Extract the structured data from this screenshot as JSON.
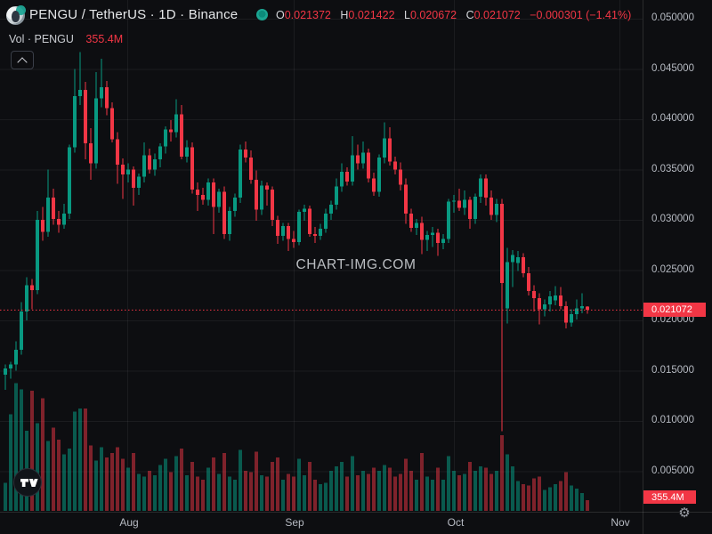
{
  "header": {
    "symbol_title": "PENGU / TetherUS · 1D · Binance",
    "ohlc": {
      "o_label": "O",
      "o_value": "0.021372",
      "h_label": "H",
      "h_value": "0.021422",
      "l_label": "L",
      "l_value": "0.020672",
      "c_label": "C",
      "c_value": "0.021072",
      "change": "−0.000301 (−1.41%)"
    }
  },
  "volume_row": {
    "label": "Vol · PENGU",
    "value": "355.4M"
  },
  "watermark": "CHART-IMG.COM",
  "price_axis": {
    "tick_labels": [
      "0.050000",
      "0.045000",
      "0.040000",
      "0.035000",
      "0.030000",
      "0.025000",
      "0.020000",
      "0.015000",
      "0.010000",
      "0.005000"
    ],
    "last_price_badge": "0.021072",
    "last_volume_badge": "355.4M"
  },
  "time_axis": {
    "labels": [
      "Aug",
      "Sep",
      "Oct",
      "Nov"
    ]
  },
  "colors": {
    "up": "#089981",
    "down": "#f23645",
    "volume_up": "rgba(8,153,129,0.55)",
    "volume_down": "rgba(242,54,69,0.5)",
    "badge": "#f23645",
    "background": "#0d0e11",
    "grid": "rgba(250,250,255,0.06)",
    "axis_text": "#b6bac2"
  },
  "chart_data": {
    "type": "candlestick",
    "title": "PENGU / TetherUS · 1D · Binance",
    "symbol": "PENGU/TetherUS",
    "interval": "1D",
    "exchange": "Binance",
    "x_ticks": [
      "Aug",
      "Sep",
      "Oct",
      "Nov"
    ],
    "y_tick_values": [
      0.05,
      0.045,
      0.04,
      0.035,
      0.03,
      0.025,
      0.02,
      0.015,
      0.01,
      0.005
    ],
    "y_range": [
      0.0045,
      0.0518
    ],
    "grid": true,
    "legend_position": "none",
    "last_price": 0.021072,
    "last_ohlc": {
      "open": 0.021372,
      "high": 0.021422,
      "low": 0.020672,
      "close": 0.021072,
      "change": -0.000301,
      "change_pct": -1.41
    },
    "last_volume_millions": 355.4,
    "candles_ohlc": [
      [
        0.0146,
        0.0156,
        0.0131,
        0.0152
      ],
      [
        0.0152,
        0.0159,
        0.0142,
        0.0156
      ],
      [
        0.0156,
        0.0179,
        0.015,
        0.0171
      ],
      [
        0.0171,
        0.0218,
        0.0166,
        0.0209
      ],
      [
        0.0209,
        0.0243,
        0.02,
        0.0235
      ],
      [
        0.0235,
        0.0241,
        0.0211,
        0.023
      ],
      [
        0.023,
        0.0309,
        0.0226,
        0.03
      ],
      [
        0.03,
        0.0313,
        0.0279,
        0.0288
      ],
      [
        0.0288,
        0.035,
        0.0283,
        0.0322
      ],
      [
        0.0322,
        0.0331,
        0.0295,
        0.0301
      ],
      [
        0.0301,
        0.0309,
        0.0287,
        0.0295
      ],
      [
        0.0295,
        0.0316,
        0.0291,
        0.0306
      ],
      [
        0.0306,
        0.0375,
        0.0301,
        0.0372
      ],
      [
        0.0372,
        0.045,
        0.0367,
        0.0423
      ],
      [
        0.0423,
        0.0467,
        0.0414,
        0.0429
      ],
      [
        0.0429,
        0.0437,
        0.036,
        0.0376
      ],
      [
        0.0376,
        0.0391,
        0.034,
        0.0356
      ],
      [
        0.0356,
        0.0447,
        0.0351,
        0.0421
      ],
      [
        0.0421,
        0.046,
        0.0412,
        0.0432
      ],
      [
        0.0432,
        0.0438,
        0.0404,
        0.0411
      ],
      [
        0.0411,
        0.0417,
        0.0377,
        0.038
      ],
      [
        0.038,
        0.0387,
        0.0336,
        0.0355
      ],
      [
        0.0355,
        0.0361,
        0.0321,
        0.0345
      ],
      [
        0.0345,
        0.0356,
        0.0337,
        0.035
      ],
      [
        0.035,
        0.0353,
        0.0314,
        0.0332
      ],
      [
        0.0332,
        0.0346,
        0.0325,
        0.0343
      ],
      [
        0.0343,
        0.0377,
        0.0337,
        0.0364
      ],
      [
        0.0364,
        0.0371,
        0.0346,
        0.035
      ],
      [
        0.035,
        0.0366,
        0.0344,
        0.036
      ],
      [
        0.036,
        0.0376,
        0.0352,
        0.0373
      ],
      [
        0.0373,
        0.0393,
        0.0366,
        0.039
      ],
      [
        0.039,
        0.0399,
        0.0378,
        0.0387
      ],
      [
        0.0387,
        0.042,
        0.0382,
        0.0405
      ],
      [
        0.0405,
        0.0414,
        0.036,
        0.0363
      ],
      [
        0.0363,
        0.0379,
        0.0357,
        0.0372
      ],
      [
        0.0372,
        0.0377,
        0.0326,
        0.033
      ],
      [
        0.033,
        0.0337,
        0.0309,
        0.0325
      ],
      [
        0.0325,
        0.0332,
        0.0315,
        0.032
      ],
      [
        0.032,
        0.0341,
        0.0314,
        0.0337
      ],
      [
        0.0337,
        0.0341,
        0.0286,
        0.0313
      ],
      [
        0.0313,
        0.0331,
        0.0307,
        0.0328
      ],
      [
        0.0328,
        0.0333,
        0.0281,
        0.0286
      ],
      [
        0.0286,
        0.0313,
        0.0279,
        0.0309
      ],
      [
        0.0309,
        0.0326,
        0.0303,
        0.0322
      ],
      [
        0.0322,
        0.0375,
        0.0317,
        0.037
      ],
      [
        0.037,
        0.0378,
        0.0357,
        0.0362
      ],
      [
        0.0362,
        0.0369,
        0.0336,
        0.034
      ],
      [
        0.034,
        0.0349,
        0.0299,
        0.031
      ],
      [
        0.031,
        0.0339,
        0.0305,
        0.0334
      ],
      [
        0.0334,
        0.0337,
        0.0314,
        0.033
      ],
      [
        0.033,
        0.0333,
        0.0294,
        0.03
      ],
      [
        0.03,
        0.0304,
        0.0276,
        0.0284
      ],
      [
        0.0284,
        0.0297,
        0.0279,
        0.0294
      ],
      [
        0.0294,
        0.0297,
        0.0269,
        0.0281
      ],
      [
        0.0281,
        0.0289,
        0.0272,
        0.0278
      ],
      [
        0.0278,
        0.031,
        0.0275,
        0.0308
      ],
      [
        0.0308,
        0.0315,
        0.0299,
        0.0311
      ],
      [
        0.0311,
        0.0314,
        0.0283,
        0.0286
      ],
      [
        0.0286,
        0.0293,
        0.0277,
        0.0284
      ],
      [
        0.0284,
        0.0296,
        0.028,
        0.0291
      ],
      [
        0.0291,
        0.0311,
        0.0287,
        0.0306
      ],
      [
        0.0306,
        0.0319,
        0.03,
        0.0315
      ],
      [
        0.0315,
        0.0341,
        0.031,
        0.0333
      ],
      [
        0.0333,
        0.0356,
        0.0328,
        0.0348
      ],
      [
        0.0348,
        0.0352,
        0.0334,
        0.0338
      ],
      [
        0.0338,
        0.0383,
        0.0334,
        0.0364
      ],
      [
        0.0364,
        0.0375,
        0.035,
        0.0356
      ],
      [
        0.0356,
        0.0378,
        0.0351,
        0.0367
      ],
      [
        0.0367,
        0.0371,
        0.0337,
        0.0341
      ],
      [
        0.0341,
        0.0347,
        0.0324,
        0.0328
      ],
      [
        0.0328,
        0.0365,
        0.0323,
        0.0362
      ],
      [
        0.0362,
        0.0397,
        0.0356,
        0.0381
      ],
      [
        0.0381,
        0.0392,
        0.0354,
        0.0358
      ],
      [
        0.0358,
        0.0363,
        0.0345,
        0.035
      ],
      [
        0.035,
        0.0357,
        0.0329,
        0.0335
      ],
      [
        0.0335,
        0.0341,
        0.0296,
        0.0306
      ],
      [
        0.0306,
        0.0311,
        0.0288,
        0.0292
      ],
      [
        0.0292,
        0.0301,
        0.0285,
        0.0297
      ],
      [
        0.0297,
        0.0303,
        0.0266,
        0.028
      ],
      [
        0.028,
        0.0289,
        0.0269,
        0.0285
      ],
      [
        0.0285,
        0.0293,
        0.0273,
        0.0287
      ],
      [
        0.0287,
        0.0291,
        0.0264,
        0.0277
      ],
      [
        0.0277,
        0.0286,
        0.0271,
        0.0281
      ],
      [
        0.0281,
        0.0321,
        0.0277,
        0.0318
      ],
      [
        0.0318,
        0.0325,
        0.0307,
        0.0319
      ],
      [
        0.0319,
        0.0331,
        0.0309,
        0.0312
      ],
      [
        0.0312,
        0.0329,
        0.0305,
        0.032
      ],
      [
        0.032,
        0.0323,
        0.0291,
        0.0301
      ],
      [
        0.0301,
        0.0326,
        0.0296,
        0.0323
      ],
      [
        0.0323,
        0.0345,
        0.0317,
        0.0341
      ],
      [
        0.0341,
        0.0345,
        0.0314,
        0.0322
      ],
      [
        0.0322,
        0.0329,
        0.03,
        0.0305
      ],
      [
        0.0305,
        0.0321,
        0.0298,
        0.0316
      ],
      [
        0.0316,
        0.0321,
        0.009,
        0.0237
      ],
      [
        0.0212,
        0.0272,
        0.0197,
        0.0258
      ],
      [
        0.0258,
        0.027,
        0.0233,
        0.0265
      ],
      [
        0.0257,
        0.0269,
        0.0249,
        0.0263
      ],
      [
        0.0263,
        0.0267,
        0.0243,
        0.0247
      ],
      [
        0.0247,
        0.0253,
        0.0225,
        0.0229
      ],
      [
        0.0229,
        0.0235,
        0.0209,
        0.0222
      ],
      [
        0.0222,
        0.0227,
        0.0196,
        0.0211
      ],
      [
        0.0211,
        0.0221,
        0.0204,
        0.0216
      ],
      [
        0.0216,
        0.0229,
        0.0209,
        0.0224
      ],
      [
        0.022,
        0.0234,
        0.0215,
        0.0225
      ],
      [
        0.0225,
        0.0233,
        0.0211,
        0.0214
      ],
      [
        0.0214,
        0.0219,
        0.0192,
        0.0198
      ],
      [
        0.0198,
        0.0211,
        0.0194,
        0.0206
      ],
      [
        0.0206,
        0.0221,
        0.0201,
        0.0212
      ],
      [
        0.0212,
        0.0227,
        0.0207,
        0.0214
      ],
      [
        0.021372,
        0.021422,
        0.020672,
        0.021072
      ]
    ],
    "volumes_millions": [
      950,
      3260,
      4300,
      4100,
      2700,
      4050,
      2950,
      3800,
      2350,
      2800,
      2400,
      1900,
      2100,
      3350,
      3450,
      3450,
      2200,
      1700,
      2150,
      1800,
      1950,
      2150,
      1750,
      1450,
      1950,
      1250,
      1150,
      1350,
      1200,
      1550,
      1750,
      1300,
      1850,
      2100,
      1200,
      1650,
      1150,
      1050,
      1450,
      1800,
      1250,
      1950,
      1150,
      1050,
      2050,
      1350,
      1300,
      2000,
      1200,
      1150,
      1650,
      1800,
      1050,
      1250,
      1150,
      1750,
      1200,
      1650,
      1050,
      900,
      950,
      1350,
      1500,
      1650,
      1150,
      1850,
      1200,
      1350,
      1250,
      1450,
      1350,
      1550,
      1450,
      1150,
      1250,
      1750,
      1350,
      1050,
      1950,
      1150,
      1050,
      1450,
      1050,
      1850,
      1350,
      1200,
      1250,
      1650,
      1350,
      1500,
      1450,
      1250,
      1350,
      2550,
      1900,
      1500,
      1000,
      900,
      850,
      1100,
      1150,
      700,
      800,
      900,
      1000,
      1300,
      850,
      750,
      600,
      355.4
    ]
  }
}
